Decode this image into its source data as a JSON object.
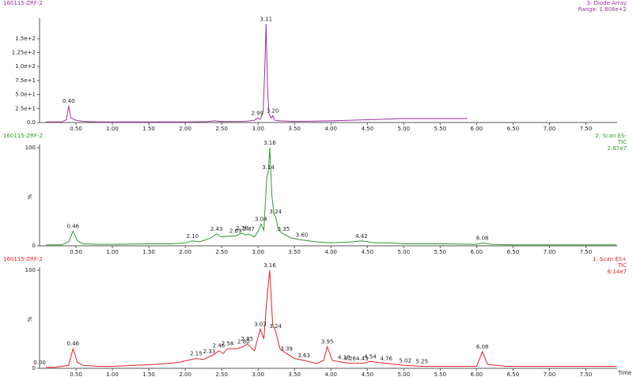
{
  "chart_data": [
    {
      "type": "line",
      "title": "160115-ZRF-2",
      "detector": [
        "3: Diode Array",
        "Range: 1.808e+2"
      ],
      "color": "#9b30a0",
      "xlim": [
        0,
        7.93
      ],
      "ylim": [
        0,
        180.8
      ],
      "xticks": [
        {
          "value": 0.5,
          "label": "0.50"
        },
        {
          "value": 1,
          "label": "1.00"
        },
        {
          "value": 1.5,
          "label": "1.50"
        },
        {
          "value": 2,
          "label": "2.00"
        },
        {
          "value": 2.5,
          "label": "2.50"
        },
        {
          "value": 3,
          "label": "3.00"
        },
        {
          "value": 3.5,
          "label": "3.50"
        },
        {
          "value": 4,
          "label": "4.00"
        },
        {
          "value": 4.5,
          "label": "4.50"
        },
        {
          "value": 5,
          "label": "5.00"
        },
        {
          "value": 5.5,
          "label": "5.50"
        },
        {
          "value": 6,
          "label": "6.00"
        },
        {
          "value": 6.5,
          "label": "6.50"
        },
        {
          "value": 7,
          "label": "7.00"
        },
        {
          "value": 7.5,
          "label": "7.50"
        }
      ],
      "yticks": [
        {
          "value": 0,
          "label": "0.0"
        },
        {
          "value": 25,
          "label": "2.5e+1"
        },
        {
          "value": 50,
          "label": "5.0e+1"
        },
        {
          "value": 75,
          "label": "7.5e+1"
        },
        {
          "value": 100,
          "label": "1.0e+2"
        },
        {
          "value": 125,
          "label": "1.25e+2"
        },
        {
          "value": 150,
          "label": "1.5e+2"
        }
      ],
      "x": [
        0.09,
        0.3,
        0.37,
        0.4,
        0.43,
        0.5,
        0.6,
        0.8,
        1.0,
        1.5,
        2.0,
        2.3,
        2.4,
        2.5,
        2.8,
        2.95,
        2.99,
        3.03,
        3.07,
        3.09,
        3.11,
        3.13,
        3.15,
        3.18,
        3.2,
        3.23,
        3.3,
        3.5,
        4.0,
        4.5,
        5.0,
        5.5,
        5.87
      ],
      "values": [
        1,
        1,
        5,
        30,
        8,
        4,
        2,
        1,
        1,
        1,
        1,
        1.5,
        3,
        1.5,
        2,
        4,
        8,
        6,
        20,
        90,
        176,
        60,
        15,
        8,
        12,
        4,
        3,
        2,
        3,
        5,
        7,
        7,
        7
      ],
      "peaks": [
        {
          "value": 0.4,
          "label": "0.40"
        },
        {
          "value": 2.99,
          "label": "2.99"
        },
        {
          "value": 3.11,
          "label": "3.11"
        },
        {
          "value": 3.2,
          "label": "3.20"
        }
      ]
    },
    {
      "type": "line",
      "title": "160115-ZRF-2",
      "detector": [
        "2: Scan ES-",
        "TIC",
        "2.67e7"
      ],
      "color": "#2e9a2e",
      "y_label": "%",
      "xlim": [
        0,
        7.93
      ],
      "ylim": [
        0,
        100
      ],
      "xticks": [
        {
          "value": 0.5,
          "label": "0.50"
        },
        {
          "value": 1,
          "label": "1.00"
        },
        {
          "value": 1.5,
          "label": "1.50"
        },
        {
          "value": 2,
          "label": "2.00"
        },
        {
          "value": 2.5,
          "label": "2.50"
        },
        {
          "value": 3,
          "label": "3.00"
        },
        {
          "value": 3.5,
          "label": "3.50"
        },
        {
          "value": 4,
          "label": "4.00"
        },
        {
          "value": 4.5,
          "label": "4.50"
        },
        {
          "value": 5,
          "label": "5.00"
        },
        {
          "value": 5.5,
          "label": "5.50"
        },
        {
          "value": 6,
          "label": "6.00"
        },
        {
          "value": 6.5,
          "label": "6.50"
        },
        {
          "value": 7,
          "label": "7.00"
        },
        {
          "value": 7.5,
          "label": "7.50"
        }
      ],
      "yticks": [
        0,
        100
      ],
      "x": [
        0.09,
        0.3,
        0.4,
        0.46,
        0.52,
        0.6,
        0.8,
        1.0,
        1.5,
        1.8,
        2.0,
        2.1,
        2.2,
        2.35,
        2.43,
        2.5,
        2.6,
        2.69,
        2.75,
        2.78,
        2.83,
        2.87,
        2.95,
        3.0,
        3.04,
        3.08,
        3.12,
        3.14,
        3.16,
        3.19,
        3.22,
        3.24,
        3.28,
        3.35,
        3.45,
        3.6,
        3.8,
        4.0,
        4.3,
        4.42,
        4.6,
        4.8,
        5.0,
        5.5,
        6.0,
        6.08,
        6.2,
        6.5,
        7.0,
        7.5,
        7.92
      ],
      "values": [
        1,
        1,
        4,
        15,
        5,
        2,
        1.5,
        1.5,
        2,
        2,
        3,
        5,
        4,
        8,
        12,
        9,
        10,
        10,
        12,
        13,
        11,
        12,
        9,
        15,
        22,
        16,
        70,
        75,
        100,
        50,
        32,
        30,
        16,
        12,
        8,
        6,
        4,
        3,
        4,
        5,
        3,
        3,
        2,
        2,
        1.5,
        3,
        1.5,
        1,
        1,
        1,
        1
      ],
      "peaks": [
        {
          "value": 0.46,
          "label": "0.46"
        },
        {
          "value": 2.1,
          "label": "2.10"
        },
        {
          "value": 2.43,
          "label": "2.43"
        },
        {
          "value": 2.69,
          "label": "2.69"
        },
        {
          "value": 2.78,
          "label": "2.78"
        },
        {
          "value": 2.87,
          "label": "2.87"
        },
        {
          "value": 3.04,
          "label": "3.04"
        },
        {
          "value": 3.14,
          "label": "3.14"
        },
        {
          "value": 3.16,
          "label": "3.16"
        },
        {
          "value": 3.24,
          "label": "3.24"
        },
        {
          "value": 3.35,
          "label": "3.35"
        },
        {
          "value": 3.6,
          "label": "3.60"
        },
        {
          "value": 4.42,
          "label": "4.42"
        },
        {
          "value": 6.08,
          "label": "6.08"
        }
      ]
    },
    {
      "type": "line",
      "title": "160115-ZRF-2",
      "detector": [
        "1: Scan ES+",
        "TIC",
        "6.14e7"
      ],
      "color": "#e8202a",
      "y_label": "%",
      "x_label": "Time",
      "xlim": [
        0,
        7.93
      ],
      "ylim": [
        0,
        100
      ],
      "xticks": [
        {
          "value": 0.5,
          "label": "0.50"
        },
        {
          "value": 1,
          "label": "1.00"
        },
        {
          "value": 1.5,
          "label": "1.50"
        },
        {
          "value": 2,
          "label": "2.00"
        },
        {
          "value": 2.5,
          "label": "2.50"
        },
        {
          "value": 3,
          "label": "3.00"
        },
        {
          "value": 3.5,
          "label": "3.50"
        },
        {
          "value": 4,
          "label": "4.00"
        },
        {
          "value": 4.5,
          "label": "4.50"
        },
        {
          "value": 5,
          "label": "5.00"
        },
        {
          "value": 5.5,
          "label": "5.50"
        },
        {
          "value": 6,
          "label": "6.00"
        },
        {
          "value": 6.5,
          "label": "6.50"
        },
        {
          "value": 7,
          "label": "7.00"
        },
        {
          "value": 7.5,
          "label": "7.50"
        }
      ],
      "yticks": [
        0,
        100
      ],
      "x": [
        0.09,
        0.2,
        0.4,
        0.46,
        0.52,
        0.6,
        0.8,
        1.0,
        1.3,
        1.6,
        1.9,
        2.15,
        2.25,
        2.33,
        2.4,
        2.46,
        2.52,
        2.58,
        2.7,
        2.8,
        2.85,
        2.95,
        3.03,
        3.08,
        3.12,
        3.16,
        3.2,
        3.24,
        3.3,
        3.39,
        3.5,
        3.63,
        3.8,
        3.9,
        3.95,
        4.02,
        4.18,
        4.26,
        4.35,
        4.43,
        4.54,
        4.65,
        4.76,
        5.02,
        5.25,
        5.5,
        6.0,
        6.08,
        6.15,
        6.4,
        7.0,
        7.5,
        7.92
      ],
      "values": [
        1,
        1,
        3,
        20,
        6,
        3,
        2,
        2,
        3,
        4,
        6,
        10,
        9,
        12,
        14,
        18,
        15,
        20,
        20,
        22,
        25,
        18,
        40,
        30,
        70,
        100,
        45,
        38,
        20,
        15,
        10,
        8,
        5,
        8,
        22,
        8,
        6,
        5,
        5,
        5,
        7,
        6,
        5,
        3,
        2,
        2,
        2,
        17,
        4,
        2,
        2,
        2,
        2
      ],
      "peaks": [
        {
          "value": 0,
          "label": "0.00"
        },
        {
          "value": 0.46,
          "label": "0.46"
        },
        {
          "value": 2.15,
          "label": "2.15"
        },
        {
          "value": 2.33,
          "label": "2.33"
        },
        {
          "value": 2.46,
          "label": "2.46"
        },
        {
          "value": 2.58,
          "label": "2.58"
        },
        {
          "value": 2.8,
          "label": "2.80"
        },
        {
          "value": 2.85,
          "label": "2.85"
        },
        {
          "value": 3.03,
          "label": "3.03"
        },
        {
          "value": 3.16,
          "label": "3.16"
        },
        {
          "value": 3.24,
          "label": "3.24"
        },
        {
          "value": 3.39,
          "label": "3.39"
        },
        {
          "value": 3.63,
          "label": "3.63"
        },
        {
          "value": 3.95,
          "label": "3.95"
        },
        {
          "value": 4.18,
          "label": "4.18"
        },
        {
          "value": 4.26,
          "label": "4.26"
        },
        {
          "value": 4.43,
          "label": "4.43"
        },
        {
          "value": 4.54,
          "label": "4.54"
        },
        {
          "value": 4.76,
          "label": "4.76"
        },
        {
          "value": 5.02,
          "label": "5.02"
        },
        {
          "value": 5.25,
          "label": "5.25"
        },
        {
          "value": 6.08,
          "label": "6.08"
        }
      ]
    }
  ]
}
